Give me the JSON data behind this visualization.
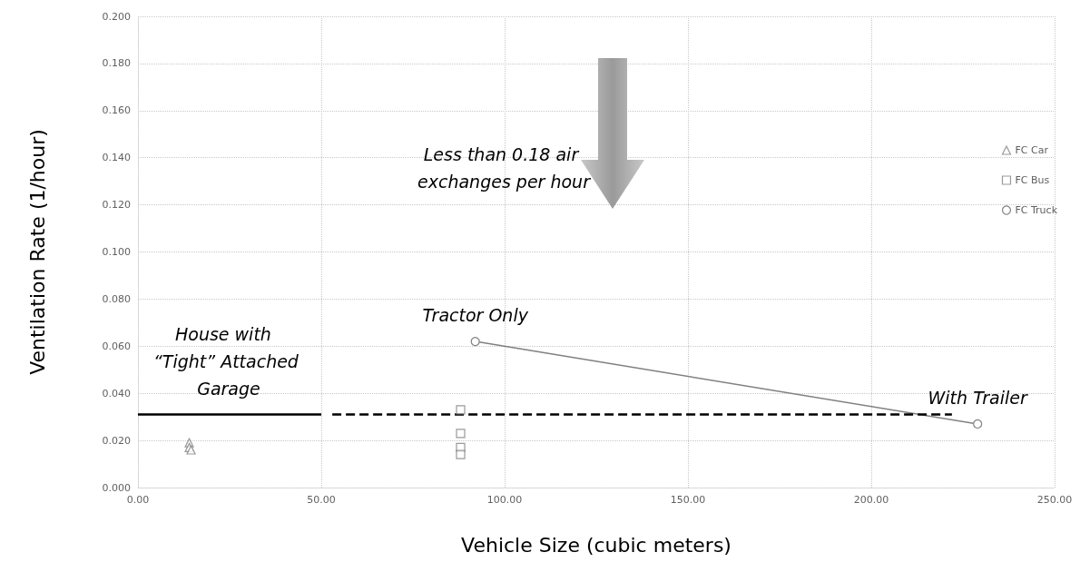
{
  "chart_data": {
    "type": "scatter",
    "xlabel": "Vehicle Size (cubic meters)",
    "ylabel": "Ventilation Rate (1/hour)",
    "xlim": [
      0,
      250
    ],
    "xticks": [
      {
        "value": 0,
        "label": "0.00"
      },
      {
        "value": 50,
        "label": "50.00"
      },
      {
        "value": 100,
        "label": "100.00"
      },
      {
        "value": 150,
        "label": "150.00"
      },
      {
        "value": 200,
        "label": "200.00"
      },
      {
        "value": 250,
        "label": "250.00"
      }
    ],
    "ylim": [
      0,
      0.2
    ],
    "yticks": [
      {
        "value": 0,
        "label": "0.000"
      },
      {
        "value": 0.02,
        "label": "0.020"
      },
      {
        "value": 0.04,
        "label": "0.040"
      },
      {
        "value": 0.06,
        "label": "0.060"
      },
      {
        "value": 0.08,
        "label": "0.080"
      },
      {
        "value": 0.1,
        "label": "0.100"
      },
      {
        "value": 0.12,
        "label": "0.120"
      },
      {
        "value": 0.14,
        "label": "0.140"
      },
      {
        "value": 0.16,
        "label": "0.160"
      },
      {
        "value": 0.18,
        "label": "0.180"
      },
      {
        "value": 0.2,
        "label": "0.200"
      }
    ],
    "grid": true,
    "legend": "right",
    "series": [
      {
        "name": "FC Car",
        "marker": "triangle",
        "color": "#808080",
        "x": [
          14,
          14,
          14.5
        ],
        "values": [
          0.019,
          0.017,
          0.016
        ]
      },
      {
        "name": "FC Bus",
        "marker": "square",
        "color": "#808080",
        "x": [
          88,
          88,
          88,
          88
        ],
        "values": [
          0.033,
          0.023,
          0.017,
          0.014
        ]
      },
      {
        "name": "FC Truck",
        "type": "line",
        "marker": "circle",
        "color": "#808080",
        "x": [
          92,
          229
        ],
        "values": [
          0.062,
          0.027
        ]
      },
      {
        "type": "line",
        "marker": "none",
        "line_style": "solid",
        "color": "#000000",
        "x": [
          0,
          50
        ],
        "values": [
          0.031,
          0.031
        ]
      },
      {
        "type": "line",
        "marker": "none",
        "line_style": "dashed",
        "color": "#000000",
        "x": [
          53,
          222
        ],
        "values": [
          0.031,
          0.031
        ]
      }
    ],
    "annotations": [
      {
        "text": "House with “Tight” Attached Garage",
        "x": 24,
        "y": 0.031
      },
      {
        "text": "Tractor Only",
        "x": 92,
        "y": 0.062
      },
      {
        "text": "With Trailer",
        "x": 229,
        "y": 0.027
      },
      "Less than 0.18 air exchanges per hour"
    ]
  }
}
